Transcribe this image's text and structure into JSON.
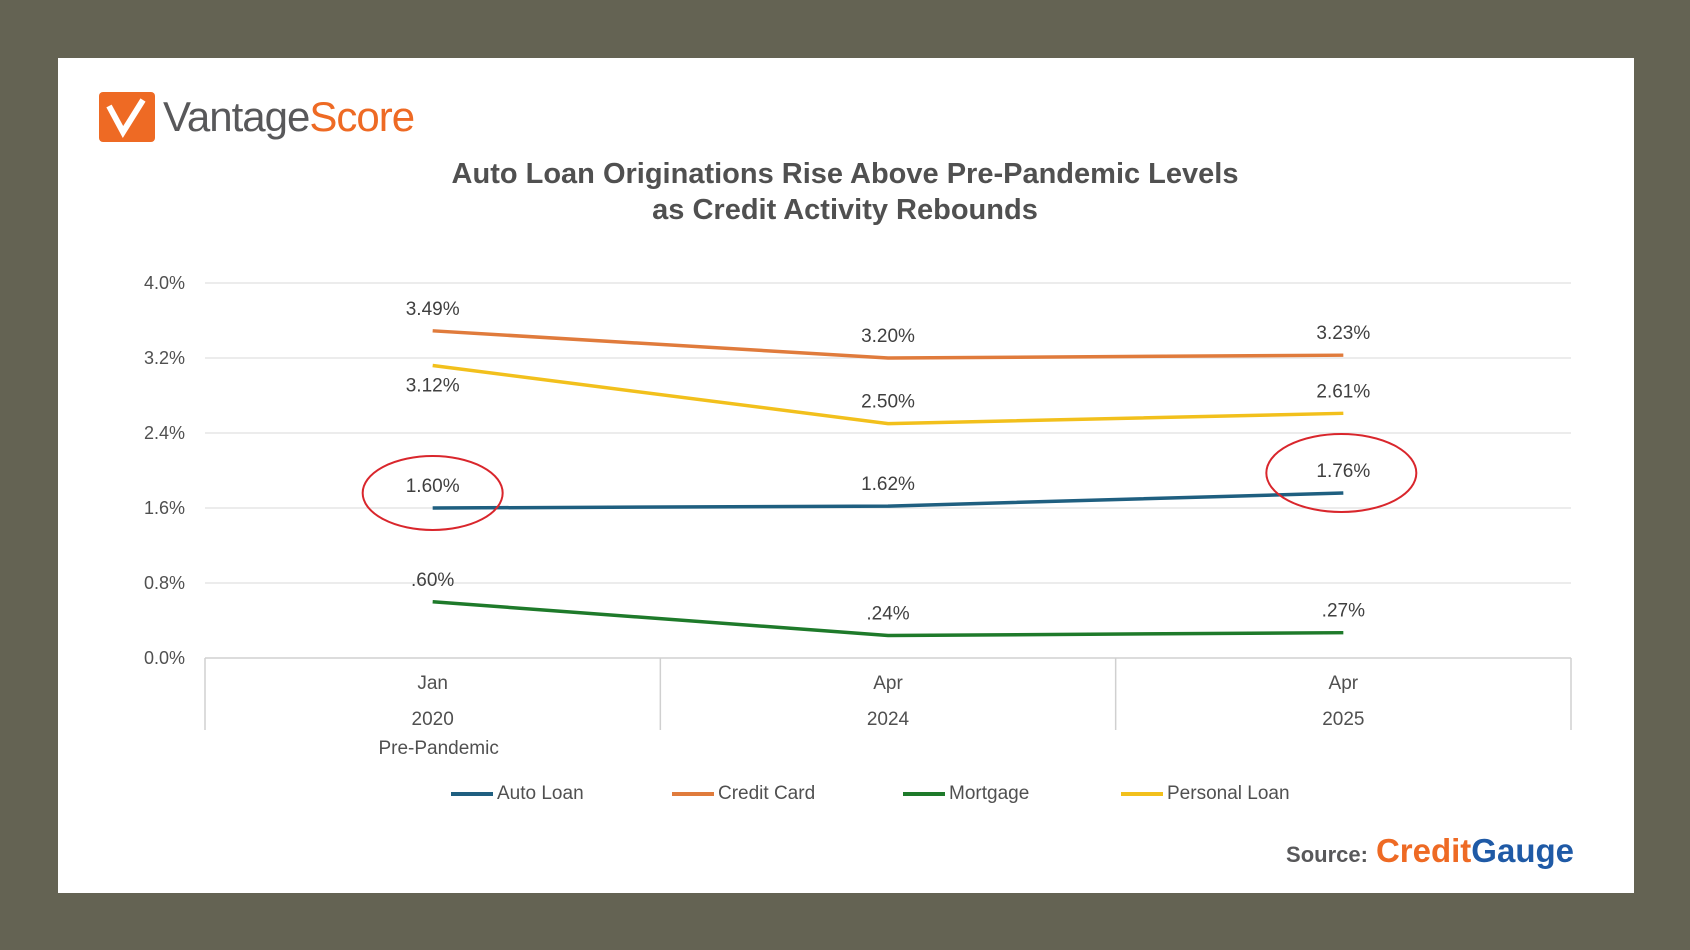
{
  "logo": {
    "part1": "Vantage",
    "part2": "Score"
  },
  "source": {
    "label": "Source:",
    "brand_part1": "Credit",
    "brand_part2": "Gauge"
  },
  "chart_data": {
    "type": "line",
    "title": [
      "Auto Loan Originations Rise Above Pre-Pandemic Levels",
      "as Credit Activity Rebounds"
    ],
    "categories": [
      {
        "month": "Jan",
        "year": "2020",
        "note": "Pre-Pandemic"
      },
      {
        "month": "Apr",
        "year": "2024",
        "note": ""
      },
      {
        "month": "Apr",
        "year": "2025",
        "note": ""
      }
    ],
    "ylim": [
      0,
      4.0
    ],
    "yticks": [
      "0.0%",
      "0.8%",
      "1.6%",
      "2.4%",
      "3.2%",
      "4.0%"
    ],
    "ytick_values": [
      0,
      0.8,
      1.6,
      2.4,
      3.2,
      4.0
    ],
    "grid": true,
    "legend_position": "bottom",
    "series": [
      {
        "name": "Auto Loan",
        "color": "#1f5f80",
        "values": [
          1.6,
          1.62,
          1.76
        ],
        "labels": [
          "1.60%",
          "1.62%",
          "1.76%"
        ]
      },
      {
        "name": "Credit Card",
        "color": "#e07b3c",
        "values": [
          3.49,
          3.2,
          3.23
        ],
        "labels": [
          "3.49%",
          "3.20%",
          "3.23%"
        ]
      },
      {
        "name": "Mortgage",
        "color": "#1e7a2a",
        "values": [
          0.6,
          0.24,
          0.27
        ],
        "labels": [
          ".60%",
          ".24%",
          ".27%"
        ]
      },
      {
        "name": "Personal Loan",
        "color": "#f2c01c",
        "values": [
          3.12,
          2.5,
          2.61
        ],
        "labels": [
          "3.12%",
          "2.50%",
          "2.61%"
        ]
      }
    ],
    "annotations": [
      {
        "type": "circle",
        "series": "Auto Loan",
        "category_index": 0,
        "color": "#d9262c"
      },
      {
        "type": "circle",
        "series": "Auto Loan",
        "category_index": 2,
        "color": "#d9262c"
      }
    ]
  }
}
